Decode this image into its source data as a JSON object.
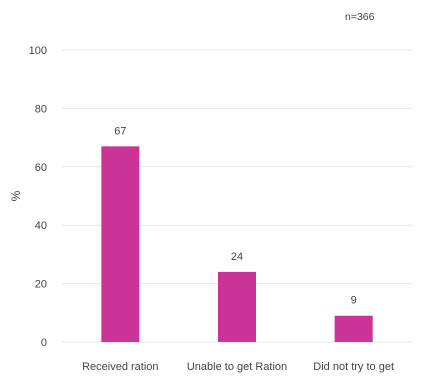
{
  "note": "n=366",
  "colors": {
    "bar": "#cc3399",
    "grid": "#e6e6e6",
    "text": "#444444"
  },
  "chart_data": {
    "type": "bar",
    "title": "",
    "xlabel": "",
    "ylabel": "%",
    "categories": [
      "Received ration",
      "Unable to get Ration",
      "Did not try to get"
    ],
    "values": [
      67,
      24,
      9
    ],
    "data_labels": [
      "67",
      "24",
      "9"
    ],
    "ylim": [
      0,
      100
    ],
    "yticks": [
      0,
      20,
      40,
      60,
      80,
      100
    ],
    "grid": true,
    "legend": "none"
  }
}
